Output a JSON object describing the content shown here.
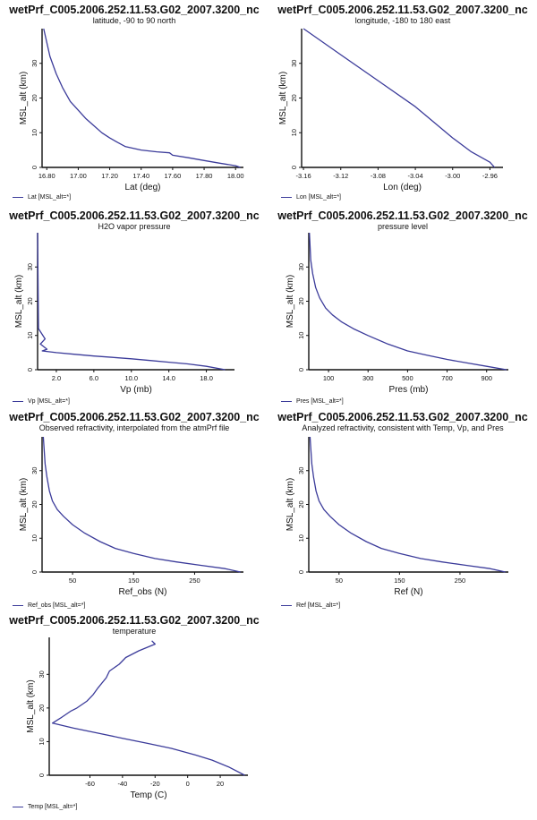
{
  "charts": [
    {
      "title": "wetPrf_C005.2006.252.11.53.G02_2007.3200_nc",
      "subtitle": "latitude, -90 to 90 north",
      "legend": "Lat [MSL_alt=*]",
      "color": "#3b3b9a",
      "chart_data": {
        "type": "line",
        "title": "wetPrf_C005.2006.252.11.53.G02_2007.3200_nc",
        "subtitle": "latitude, -90 to 90 north",
        "xlabel": "Lat (deg)",
        "ylabel": "MSL_alt (km)",
        "xlim": [
          16.77,
          18.05
        ],
        "ylim": [
          0,
          40
        ],
        "xticks": [
          16.8,
          17.0,
          17.2,
          17.4,
          17.6,
          17.8,
          18.0
        ],
        "xtick_labels": [
          "16.80",
          "17.00",
          "17.20",
          "17.40",
          "17.60",
          "17.80",
          "18.00"
        ],
        "yticks": [
          0,
          10,
          20,
          30
        ],
        "ytick_labels": [
          "0",
          "10",
          "20",
          "30"
        ],
        "series": [
          {
            "name": "Lat [MSL_alt=*]",
            "x": [
              16.78,
              16.82,
              16.86,
              16.9,
              16.95,
              17.0,
              17.05,
              17.1,
              17.15,
              17.2,
              17.25,
              17.3,
              17.4,
              17.5,
              17.58,
              17.6,
              17.7,
              17.8,
              17.9,
              18.0,
              18.03
            ],
            "y": [
              40,
              32,
              27,
              23,
              19,
              16.5,
              14,
              12,
              10,
              8.5,
              7.2,
              6,
              5,
              4.5,
              4.2,
              3.5,
              2.8,
              2,
              1.2,
              0.5,
              0
            ]
          }
        ]
      }
    },
    {
      "title": "wetPrf_C005.2006.252.11.53.G02_2007.3200_nc",
      "subtitle": "longitude, -180 to 180 east",
      "legend": "Lon [MSL_alt=*]",
      "color": "#3b3b9a",
      "chart_data": {
        "type": "line",
        "title": "wetPrf_C005.2006.252.11.53.G02_2007.3200_nc",
        "subtitle": "longitude, -180 to 180 east",
        "xlabel": "Lon (deg)",
        "ylabel": "MSL_alt (km)",
        "xlim": [
          -3.162,
          -2.946
        ],
        "ylim": [
          0,
          40
        ],
        "xticks": [
          -3.16,
          -3.12,
          -3.08,
          -3.04,
          -3.0,
          -2.96
        ],
        "xtick_labels": [
          "-3.16",
          "-3.12",
          "-3.08",
          "-3.04",
          "-3.00",
          "-2.96"
        ],
        "yticks": [
          0,
          10,
          20,
          30
        ],
        "ytick_labels": [
          "0",
          "10",
          "20",
          "30"
        ],
        "series": [
          {
            "name": "Lon [MSL_alt=*]",
            "x": [
              -3.16,
              -3.12,
              -3.08,
              -3.04,
              -3.0,
              -2.98,
              -2.96,
              -2.955
            ],
            "y": [
              40,
              32.5,
              25,
              17.5,
              8.5,
              4.5,
              1.5,
              0
            ]
          }
        ]
      }
    },
    {
      "title": "wetPrf_C005.2006.252.11.53.G02_2007.3200_nc",
      "subtitle": "H2O vapor pressure",
      "legend": "Vp [MSL_alt=*]",
      "color": "#3b3b9a",
      "chart_data": {
        "type": "line",
        "title": "wetPrf_C005.2006.252.11.53.G02_2007.3200_nc",
        "subtitle": "H2O vapor pressure",
        "xlabel": "Vp (mb)",
        "ylabel": "MSL_alt (km)",
        "xlim": [
          0,
          21
        ],
        "ylim": [
          0,
          40
        ],
        "xticks": [
          2,
          6,
          10,
          14,
          18
        ],
        "xtick_labels": [
          "2.0",
          "6.0",
          "10.0",
          "14.0",
          "18.0"
        ],
        "yticks": [
          0,
          10,
          20,
          30
        ],
        "ytick_labels": [
          "0",
          "10",
          "20",
          "30"
        ],
        "series": [
          {
            "name": "Vp [MSL_alt=*]",
            "x": [
              0,
              0.1,
              0.8,
              0.3,
              1,
              0.5,
              2,
              4,
              6,
              8,
              10,
              12,
              14,
              16,
              18,
              20
            ],
            "y": [
              40,
              12,
              9,
              7.5,
              6,
              5.5,
              5,
              4.5,
              4,
              3.6,
              3.2,
              2.7,
              2.2,
              1.7,
              1,
              0
            ]
          }
        ]
      }
    },
    {
      "title": "wetPrf_C005.2006.252.11.53.G02_2007.3200_nc",
      "subtitle": "pressure level",
      "legend": "Pres [MSL_alt=*]",
      "color": "#3b3b9a",
      "chart_data": {
        "type": "line",
        "title": "wetPrf_C005.2006.252.11.53.G02_2007.3200_nc",
        "subtitle": "pressure level",
        "xlabel": "Pres (mb)",
        "ylabel": "MSL_alt (km)",
        "xlim": [
          0,
          1010
        ],
        "ylim": [
          0,
          40
        ],
        "xticks": [
          100,
          300,
          500,
          700,
          900
        ],
        "xtick_labels": [
          "100",
          "300",
          "500",
          "700",
          "900"
        ],
        "yticks": [
          0,
          10,
          20,
          30
        ],
        "ytick_labels": [
          "0",
          "10",
          "20",
          "30"
        ],
        "series": [
          {
            "name": "Pres [MSL_alt=*]",
            "x": [
              3,
              10,
              20,
              35,
              55,
              85,
              120,
              165,
              225,
              300,
              400,
              500,
              600,
              700,
              800,
              900,
              1000
            ],
            "y": [
              40,
              32,
              28,
              24,
              21,
              18,
              16,
              14,
              12,
              10,
              7.5,
              5.5,
              4.2,
              3,
              2,
              1,
              0
            ]
          }
        ]
      }
    },
    {
      "title": "wetPrf_C005.2006.252.11.53.G02_2007.3200_nc",
      "subtitle": "Observed refractivity, interpolated from the atmPrf file",
      "legend": "Ref_obs [MSL_alt=*]",
      "color": "#3b3b9a",
      "chart_data": {
        "type": "line",
        "title": "wetPrf_C005.2006.252.11.53.G02_2007.3200_nc",
        "subtitle": "Observed refractivity, interpolated from the atmPrf file",
        "xlabel": "Ref_obs (N)",
        "ylabel": "MSL_alt (km)",
        "xlim": [
          0,
          330
        ],
        "ylim": [
          0,
          40
        ],
        "xticks": [
          50,
          150,
          250
        ],
        "xtick_labels": [
          "50",
          "150",
          "250"
        ],
        "yticks": [
          0,
          10,
          20,
          30
        ],
        "ytick_labels": [
          "0",
          "10",
          "20",
          "30"
        ],
        "series": [
          {
            "name": "Ref_obs [MSL_alt=*]",
            "x": [
              2,
              5,
              8,
              12,
              17,
              25,
              35,
              50,
              70,
              95,
              120,
              150,
              185,
              220,
              260,
              300,
              325
            ],
            "y": [
              40,
              32,
              28,
              24,
              21,
              18.5,
              16.5,
              14,
              11.5,
              9,
              7,
              5.5,
              4,
              3,
              2,
              1,
              0
            ]
          }
        ]
      }
    },
    {
      "title": "wetPrf_C005.2006.252.11.53.G02_2007.3200_nc",
      "subtitle": "Analyzed refractivity, consistent with Temp, Vp, and Pres",
      "legend": "Ref [MSL_alt=*]",
      "color": "#3b3b9a",
      "chart_data": {
        "type": "line",
        "title": "wetPrf_C005.2006.252.11.53.G02_2007.3200_nc",
        "subtitle": "Analyzed refractivity, consistent with Temp, Vp, and Pres",
        "xlabel": "Ref (N)",
        "ylabel": "MSL_alt (km)",
        "xlim": [
          0,
          330
        ],
        "ylim": [
          0,
          40
        ],
        "xticks": [
          50,
          150,
          250
        ],
        "xtick_labels": [
          "50",
          "150",
          "250"
        ],
        "yticks": [
          0,
          10,
          20,
          30
        ],
        "ytick_labels": [
          "0",
          "10",
          "20",
          "30"
        ],
        "series": [
          {
            "name": "Ref [MSL_alt=*]",
            "x": [
              2,
              5,
              8,
              12,
              17,
              25,
              35,
              50,
              70,
              95,
              120,
              150,
              185,
              220,
              260,
              300,
              325
            ],
            "y": [
              40,
              32,
              28,
              24,
              21,
              18.5,
              16.5,
              14,
              11.5,
              9,
              7,
              5.5,
              4,
              3,
              2,
              1,
              0
            ]
          }
        ]
      }
    },
    {
      "title": "wetPrf_C005.2006.252.11.53.G02_2007.3200_nc",
      "subtitle": "temperature",
      "legend": "Temp [MSL_alt=*]",
      "color": "#3b3b9a",
      "chart_data": {
        "type": "line",
        "title": "wetPrf_C005.2006.252.11.53.G02_2007.3200_nc",
        "subtitle": "temperature",
        "xlabel": "Temp (C)",
        "ylabel": "MSL_alt (km)",
        "xlim": [
          -85,
          37
        ],
        "ylim": [
          0,
          41
        ],
        "xticks": [
          -60,
          -40,
          -20,
          0,
          20
        ],
        "xtick_labels": [
          "-60",
          "-40",
          "-20",
          "0",
          "20"
        ],
        "yticks": [
          0,
          10,
          20,
          30
        ],
        "ytick_labels": [
          "0",
          "10",
          "20",
          "30"
        ],
        "series": [
          {
            "name": "Temp [MSL_alt=*]",
            "x": [
              35,
              25,
              15,
              5,
              -10,
              -25,
              -40,
              -55,
              -70,
              -83,
              -78,
              -72,
              -68,
              -62,
              -58,
              -55,
              -50,
              -48,
              -42,
              -38,
              -30,
              -20,
              -22
            ],
            "y": [
              0,
              2.5,
              4.5,
              6,
              8,
              9.5,
              11,
              12.5,
              14,
              15.5,
              17,
              19,
              20,
              22,
              24,
              26,
              29,
              31,
              33,
              35,
              37,
              39,
              40
            ]
          }
        ]
      }
    }
  ]
}
